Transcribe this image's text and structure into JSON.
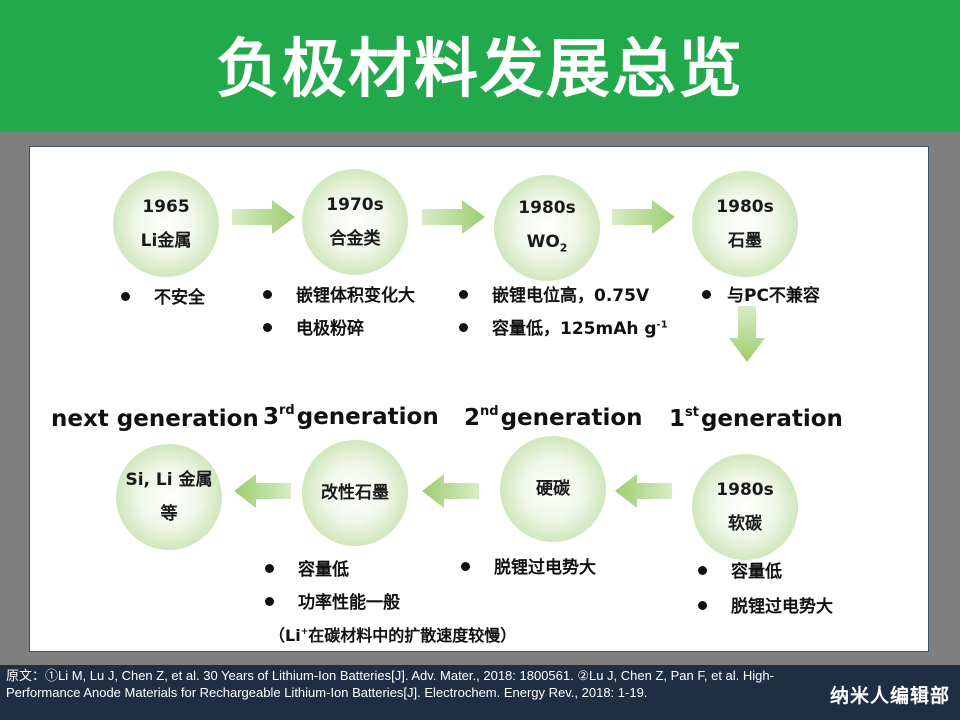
{
  "title": "负极材料发展总览",
  "nodes": {
    "n1": {
      "l1": "1965",
      "l2": "Li金属"
    },
    "n2": {
      "l1": "1970s",
      "l2": "合金类"
    },
    "n3": {
      "l1": "1980s",
      "l2": "WO",
      "l2_sub": "2"
    },
    "n4": {
      "l1": "1980s",
      "l2": "石墨"
    },
    "n5": {
      "l1": "1980s",
      "l2": "软碳"
    },
    "n6": {
      "l1": "硬碳"
    },
    "n7": {
      "l1": "改性石墨"
    },
    "n8": {
      "l1": "Si, Li 金属",
      "l2": "等"
    }
  },
  "bullets": {
    "b1": "不安全",
    "b2a": "嵌锂体积变化大",
    "b2b": "电极粉碎",
    "b3a": "嵌锂电位高，0.75V",
    "b3b": "容量低，125mAh g",
    "b3b_sup": "-1",
    "b4": "与PC不兼容",
    "b5a": "容量低",
    "b5b": "脱锂过电势大",
    "b6": "脱锂过电势大",
    "b7a": "容量低",
    "b7b": "功率性能一般"
  },
  "note": {
    "pre": "（Li",
    "sup": "+",
    "post": "在碳材料中的扩散速度较慢）"
  },
  "generations": {
    "next": "next generation",
    "g3_num": "3",
    "g3_sup": "rd",
    "g3_text": "generation",
    "g2_num": "2",
    "g2_sup": "nd",
    "g2_text": "generation",
    "g1_num": "1",
    "g1_sup": "st",
    "g1_text": "generation"
  },
  "reference": "原文：①Li M, Lu J, Chen Z, et al. 30 Years of Lithium-Ion Batteries[J]. Adv. Mater., 2018: 1800561. ②Lu J, Chen Z, Pan F, et al. High-Performance Anode Materials for Rechargeable Lithium-Ion Batteries[J]. Electrochem. Energy Rev., 2018: 1-19.",
  "brand": "纳米人编辑部",
  "colors": {
    "header": "#22a94b",
    "footer": "#1f2e42",
    "node": "#c9e3b3",
    "arrow": "#a8d37f"
  }
}
